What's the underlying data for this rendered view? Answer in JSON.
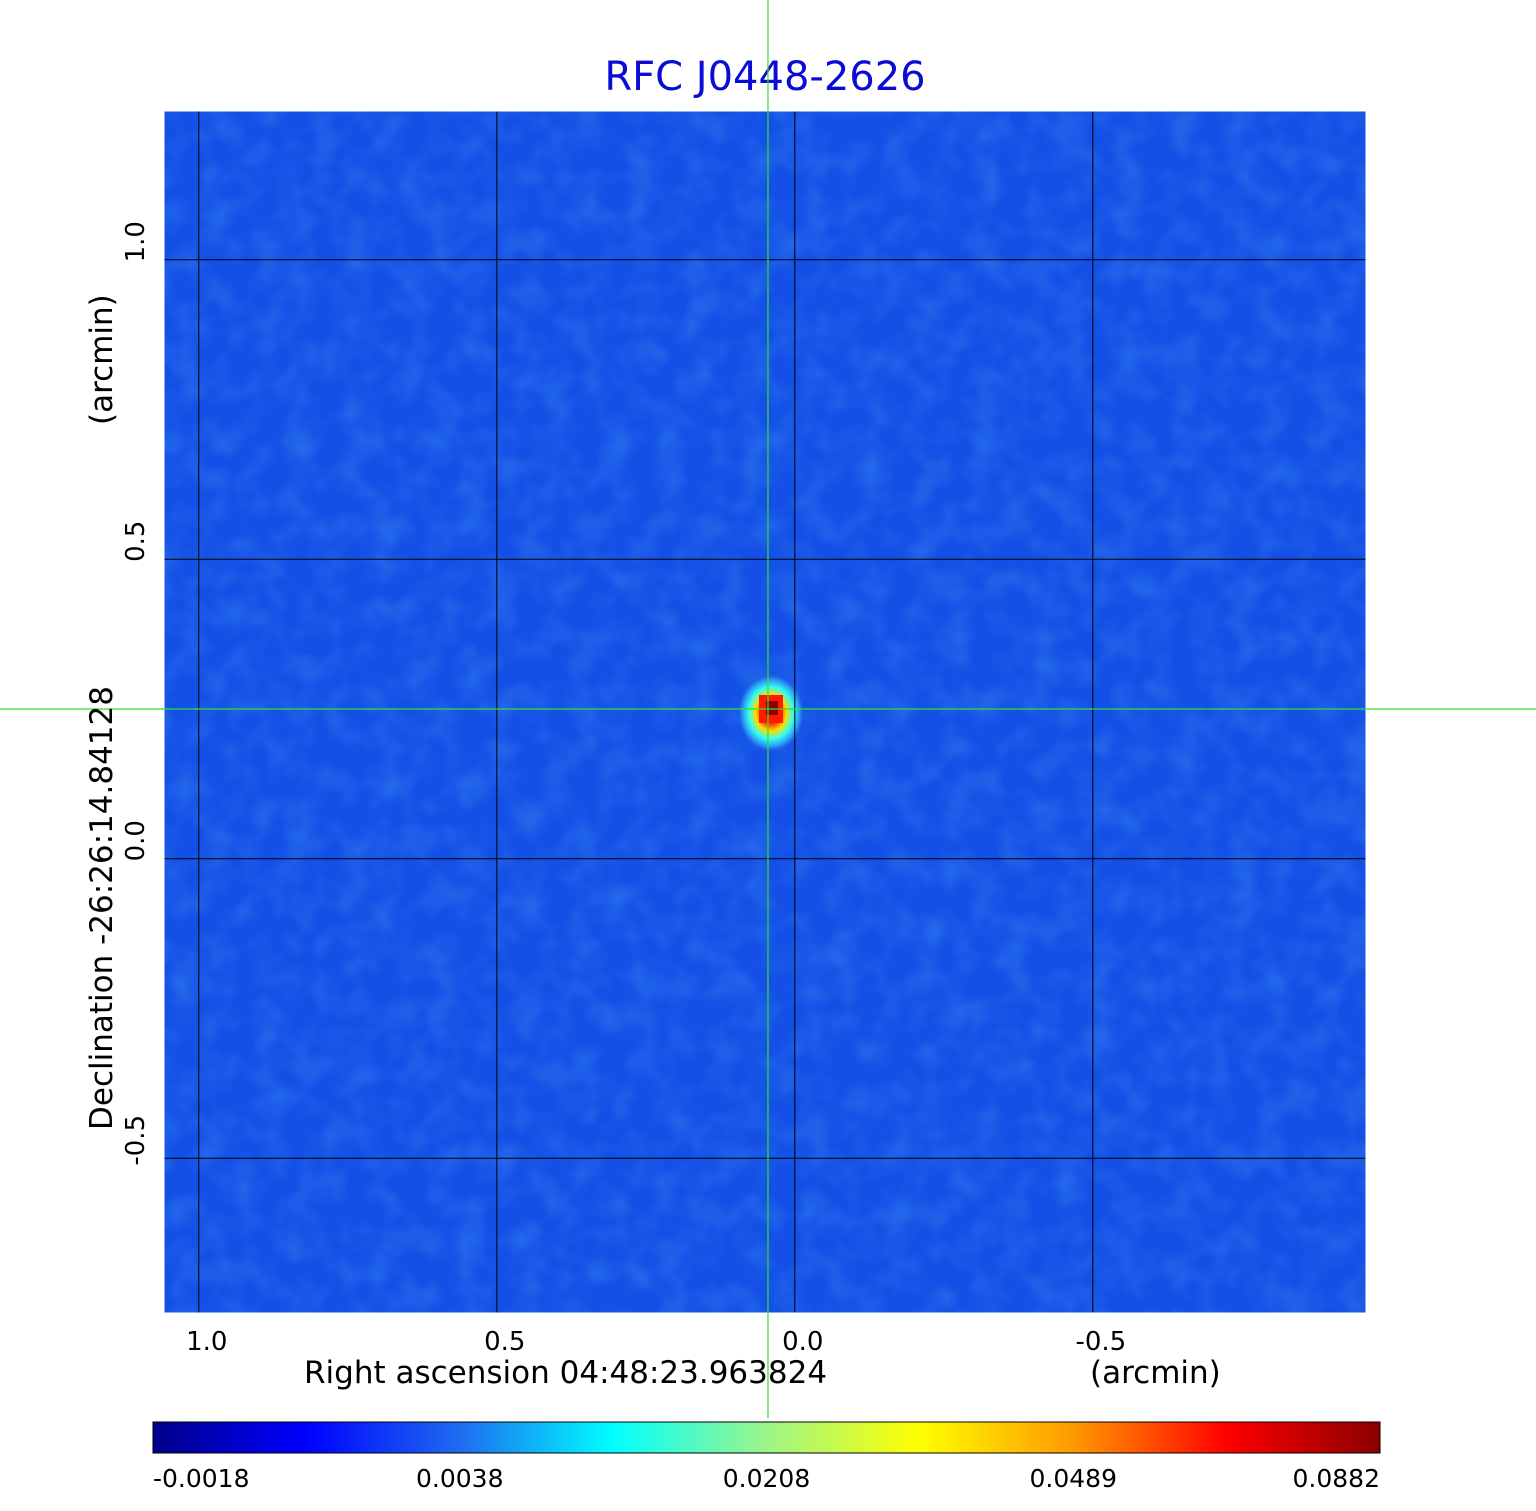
{
  "chart_data": {
    "type": "heatmap",
    "title": "RFC J0448-2626",
    "xlabel": {
      "name": "Right ascension  04:48:23.963824",
      "unit": "(arcmin)"
    },
    "ylabel": {
      "name": "Declination  -26:26:14.84128",
      "unit": "(arcmin)"
    },
    "xlim": [
      1.06,
      -0.96
    ],
    "ylim": [
      -0.76,
      1.25
    ],
    "x_ticks": [
      {
        "value": 1.0,
        "label": "1.0"
      },
      {
        "value": 0.5,
        "label": "0.5"
      },
      {
        "value": 0.0,
        "label": "0.0"
      },
      {
        "value": -0.5,
        "label": "-0.5"
      }
    ],
    "y_ticks": [
      {
        "value": 1.0,
        "label": "1.0"
      },
      {
        "value": 0.5,
        "label": "0.5"
      },
      {
        "value": 0.0,
        "label": "0.0"
      },
      {
        "value": -0.5,
        "label": "-0.5"
      }
    ],
    "grid": true,
    "crosshair": {
      "x": 0.045,
      "y": 0.25,
      "color": "#33dd33"
    },
    "source": {
      "x": 0.04,
      "y": 0.25,
      "peak": 0.0882
    },
    "colormap": "jet",
    "colorbar": {
      "orientation": "horizontal",
      "placement": "bottom",
      "range": [
        -0.0018,
        0.0882
      ],
      "tick_labels": [
        "-0.0018",
        "0.0038",
        "0.0208",
        "0.0489",
        "0.0882"
      ],
      "colors": [
        "#00008b",
        "#0000ff",
        "#1e6cf0",
        "#00ffff",
        "#9cf58a",
        "#ffff00",
        "#ff9900",
        "#ff0000",
        "#8b0000"
      ]
    },
    "background_color": "#1450e6",
    "grid_color": "#000000",
    "title_color": "#0b0bd6"
  }
}
